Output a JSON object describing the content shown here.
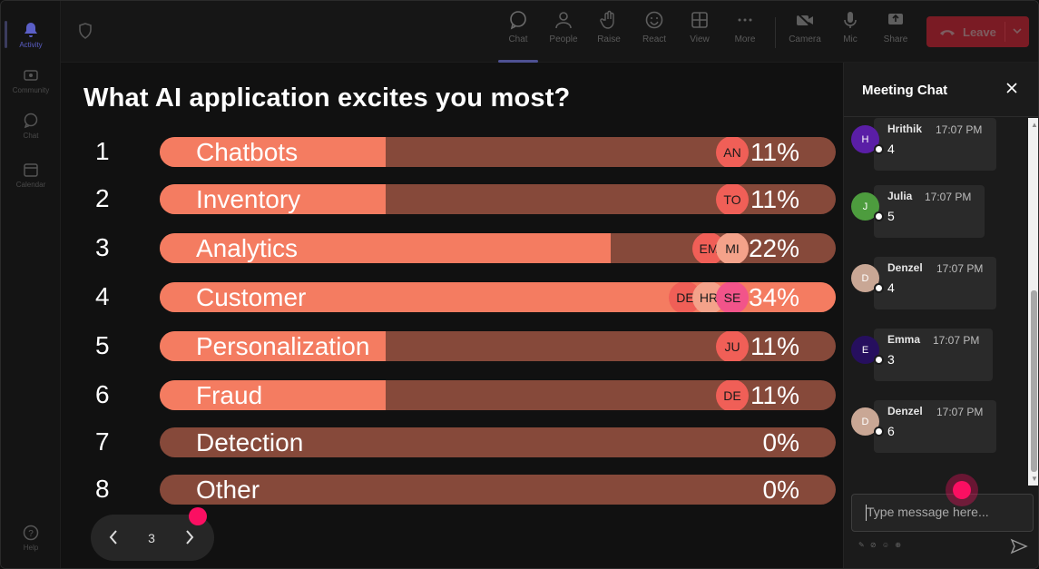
{
  "rail": {
    "items": [
      {
        "label": "Activity"
      },
      {
        "label": "Community"
      },
      {
        "label": "Chat"
      },
      {
        "label": "Calendar"
      },
      {
        "label": "Help"
      }
    ]
  },
  "toolbar": {
    "buttons": [
      {
        "label": "Chat"
      },
      {
        "label": "People"
      },
      {
        "label": "Raise"
      },
      {
        "label": "React"
      },
      {
        "label": "View"
      },
      {
        "label": "More"
      },
      {
        "label": "Camera"
      },
      {
        "label": "Mic"
      },
      {
        "label": "Share"
      }
    ],
    "leave_label": "Leave"
  },
  "poll": {
    "question": "What AI application excites you most?",
    "options": [
      {
        "num": "1",
        "label": "Chatbots",
        "pct": "11%",
        "share": 0.11,
        "avatars": [
          "AN"
        ]
      },
      {
        "num": "2",
        "label": "Inventory",
        "pct": "11%",
        "share": 0.11,
        "avatars": [
          "TO"
        ]
      },
      {
        "num": "3",
        "label": "Analytics",
        "pct": "22%",
        "share": 0.22,
        "avatars": [
          "EM",
          "MI"
        ]
      },
      {
        "num": "4",
        "label": "Customer",
        "pct": "34%",
        "share": 0.34,
        "avatars": [
          "DE",
          "HR",
          "SE"
        ]
      },
      {
        "num": "5",
        "label": "Personalization",
        "pct": "11%",
        "share": 0.11,
        "avatars": [
          "JU"
        ]
      },
      {
        "num": "6",
        "label": "Fraud",
        "pct": "11%",
        "share": 0.11,
        "avatars": [
          "DE"
        ]
      },
      {
        "num": "7",
        "label": "Detection",
        "pct": "0%",
        "share": 0,
        "avatars": []
      },
      {
        "num": "8",
        "label": "Other",
        "pct": "0%",
        "share": 0,
        "avatars": []
      }
    ],
    "page": "3"
  },
  "chat": {
    "title": "Meeting Chat",
    "messages": [
      {
        "initial": "H",
        "name": "Hrithik",
        "time": "17:07 PM",
        "text": "4",
        "color": "#5a1ea6"
      },
      {
        "initial": "J",
        "name": "Julia",
        "time": "17:07 PM",
        "text": "5",
        "color": "#4d9c3e"
      },
      {
        "initial": "D",
        "name": "Denzel",
        "time": "17:07 PM",
        "text": "4",
        "color": "#c9a795"
      },
      {
        "initial": "E",
        "name": "Emma",
        "time": "17:07 PM",
        "text": "3",
        "color": "#260f5e"
      },
      {
        "initial": "D",
        "name": "Denzel",
        "time": "17:07 PM",
        "text": "6",
        "color": "#c9a795"
      }
    ],
    "input_placeholder": "Type message here..."
  },
  "colors": {
    "bar_fill": "#f47c61",
    "bar_track": "#86493a",
    "accent_pink": "#fb0f62",
    "leave": "#c4314b"
  }
}
